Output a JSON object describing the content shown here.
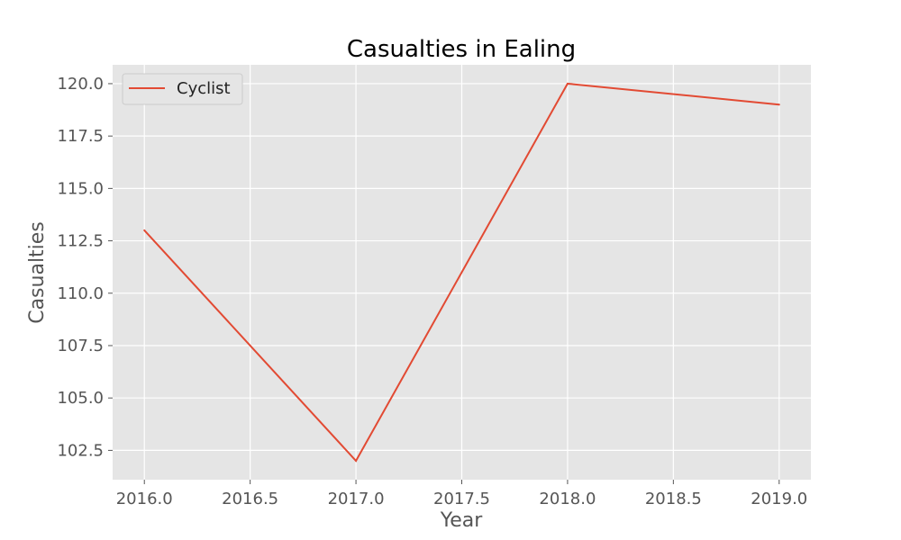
{
  "colors": {
    "series": "#e24a33",
    "plot_background": "#e5e5e5",
    "grid": "#ffffff"
  },
  "chart_data": {
    "type": "line",
    "title": "Casualties in Ealing",
    "xlabel": "Year",
    "ylabel": "Casualties",
    "xlim": [
      2015.85,
      2019.15
    ],
    "ylim": [
      101.1,
      120.9
    ],
    "xticks": [
      2016.0,
      2016.5,
      2017.0,
      2017.5,
      2018.0,
      2018.5,
      2019.0
    ],
    "xtick_labels": [
      "2016.0",
      "2016.5",
      "2017.0",
      "2017.5",
      "2018.0",
      "2018.5",
      "2019.0"
    ],
    "yticks": [
      102.5,
      105.0,
      107.5,
      110.0,
      112.5,
      115.0,
      117.5,
      120.0
    ],
    "ytick_labels": [
      "102.5",
      "105.0",
      "107.5",
      "110.0",
      "112.5",
      "115.0",
      "117.5",
      "120.0"
    ],
    "grid": true,
    "legend_position": "top-left",
    "series": [
      {
        "name": "Cyclist",
        "color": "#e24a33",
        "x": [
          2016,
          2017,
          2018,
          2019
        ],
        "y": [
          113,
          102,
          120,
          119
        ]
      }
    ]
  }
}
